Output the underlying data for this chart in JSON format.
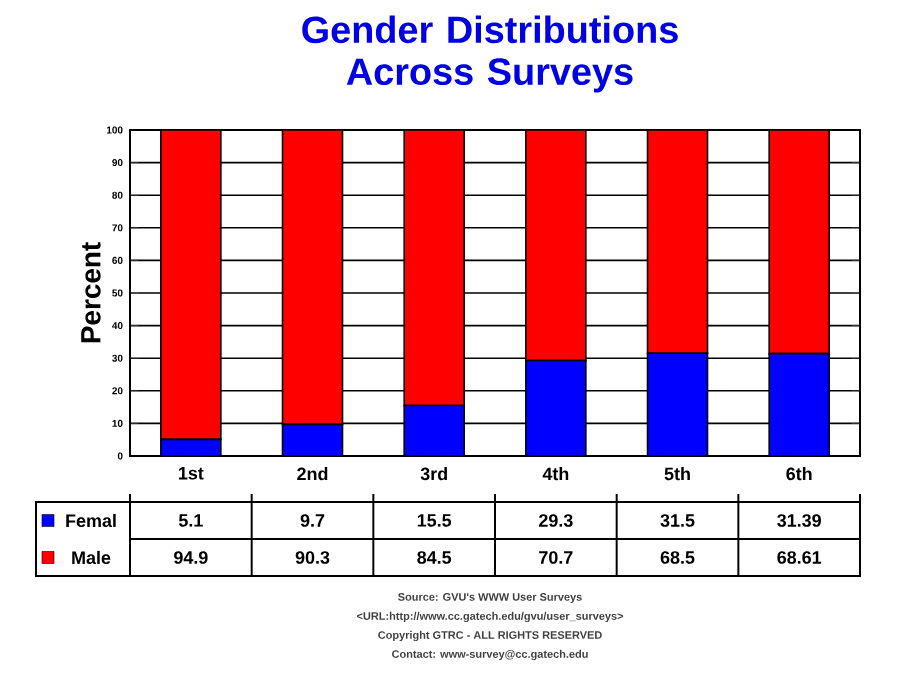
{
  "chart_data": {
    "type": "bar",
    "stacked": true,
    "title": "Gender Distributions Across Surveys",
    "ylabel": "Percent",
    "categories": [
      "1st",
      "2nd",
      "3rd",
      "4th",
      "5th",
      "6th"
    ],
    "series": [
      {
        "name": "Femal",
        "color": "#0000ff",
        "values": [
          5.1,
          9.7,
          15.5,
          29.3,
          31.5,
          31.39
        ]
      },
      {
        "name": "Male",
        "color": "#ff0000",
        "values": [
          94.9,
          90.3,
          84.5,
          70.7,
          68.5,
          68.61
        ]
      }
    ],
    "ylim": [
      0,
      100
    ],
    "yticks": [
      0,
      10,
      20,
      30,
      40,
      50,
      60,
      70,
      80,
      90,
      100
    ],
    "grid": "y",
    "data_labels": true,
    "legend": "bottom left",
    "annotations": [
      "Source: GVU's WWW User Surveys",
      "<URL:http://www.cc.gatech.edu/gvu/user_surveys>",
      "Copyright GTRC - ALL RIGHTS RESERVED",
      "Contact: www-survey@cc.gatech.edu"
    ]
  }
}
